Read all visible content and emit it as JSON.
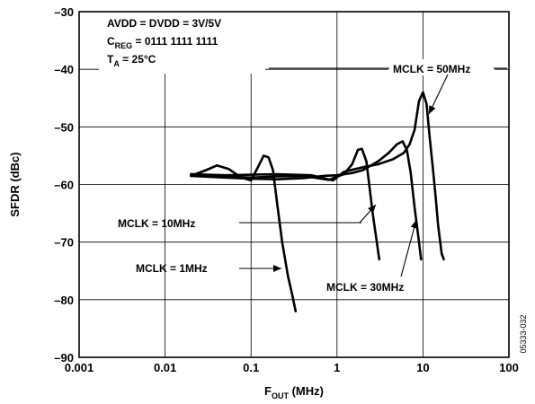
{
  "chart_data": {
    "type": "line",
    "xscale": "log",
    "xlim": [
      0.001,
      100
    ],
    "ylim": [
      -90,
      -30
    ],
    "xlabel": "F",
    "xlabel_sub": "OUT",
    "xlabel_unit": "(MHz)",
    "ylabel": "SFDR (dBc)",
    "grid": true,
    "x_ticks": [
      {
        "value": 0.001,
        "label": "0.001"
      },
      {
        "value": 0.01,
        "label": "0.01"
      },
      {
        "value": 0.1,
        "label": "0.1"
      },
      {
        "value": 1,
        "label": "1"
      },
      {
        "value": 10,
        "label": "10"
      },
      {
        "value": 100,
        "label": "100"
      }
    ],
    "y_ticks": [
      {
        "value": -30,
        "label": "–30"
      },
      {
        "value": -40,
        "label": "–40"
      },
      {
        "value": -50,
        "label": "–50"
      },
      {
        "value": -60,
        "label": "–60"
      },
      {
        "value": -70,
        "label": "–70"
      },
      {
        "value": -80,
        "label": "–80"
      },
      {
        "value": -90,
        "label": "–90"
      }
    ],
    "conditions": [
      {
        "main": "AVDD = DVDD = 3V/5V"
      },
      {
        "main": "C",
        "sub": "REG",
        "rest": " = 0111 1111 1111"
      },
      {
        "main": "T",
        "sub": "A",
        "rest": " = 25°C"
      }
    ],
    "series": [
      {
        "label": "MCLK = 1MHz",
        "x": [
          0.02,
          0.03,
          0.04,
          0.055,
          0.075,
          0.1,
          0.12,
          0.14,
          0.16,
          0.18,
          0.2,
          0.23,
          0.27,
          0.3,
          0.33
        ],
        "y": [
          -58.5,
          -57.5,
          -56.7,
          -57.3,
          -58.7,
          -59.3,
          -57,
          -55,
          -55.3,
          -57.5,
          -63,
          -70,
          -76,
          -79,
          -82
        ]
      },
      {
        "label": "MCLK = 10MHz",
        "x": [
          0.02,
          0.05,
          0.1,
          0.2,
          0.4,
          0.8,
          1.2,
          1.5,
          1.75,
          1.95,
          2.2,
          2.6,
          3.1
        ],
        "y": [
          -58.2,
          -58.6,
          -58.8,
          -58.6,
          -58.5,
          -59.2,
          -58.2,
          -56.5,
          -54,
          -53.8,
          -56,
          -65,
          -73
        ]
      },
      {
        "label": "MCLK = 30MHz",
        "x": [
          0.02,
          0.05,
          0.1,
          0.2,
          0.4,
          0.7,
          1,
          1.5,
          2,
          3,
          4,
          5,
          5.8,
          6.5,
          7.2,
          8,
          9,
          9.5
        ],
        "y": [
          -58.5,
          -58.8,
          -59,
          -59.1,
          -58.9,
          -58.5,
          -58.4,
          -58,
          -57.5,
          -56,
          -54.5,
          -53,
          -52.5,
          -54,
          -58,
          -64,
          -70,
          -73
        ]
      },
      {
        "label": "MCLK = 50MHz",
        "x": [
          0.02,
          0.05,
          0.1,
          0.2,
          0.5,
          0.9,
          1.2,
          2,
          3,
          4.5,
          6,
          7,
          8,
          9,
          10,
          11,
          12,
          13,
          14,
          15,
          16.5,
          17.5
        ],
        "y": [
          -58.2,
          -58.4,
          -58.3,
          -58.2,
          -58.4,
          -59.3,
          -57.8,
          -57,
          -56.5,
          -55.6,
          -54.5,
          -53,
          -50.5,
          -45.5,
          -44,
          -46,
          -52,
          -57,
          -62,
          -67,
          -72,
          -73
        ]
      }
    ],
    "annotations": [
      {
        "text": "MCLK = 50MHz",
        "ref_series": "MCLK = 50MHz",
        "point": {
          "x": 13,
          "y": -48
        }
      },
      {
        "text": "MCLK = 10MHz",
        "ref_series": "MCLK = 10MHz",
        "point": {
          "x": 2.4,
          "y": -64
        }
      },
      {
        "text": "MCLK = 1MHz",
        "ref_series": "MCLK = 1MHz",
        "point": {
          "x": 0.3,
          "y": -77.5
        }
      },
      {
        "text": "MCLK = 30MHz",
        "ref_series": "MCLK = 30MHz",
        "point": {
          "x": 9.2,
          "y": -66
        }
      }
    ],
    "figure_code": "05333-032"
  }
}
